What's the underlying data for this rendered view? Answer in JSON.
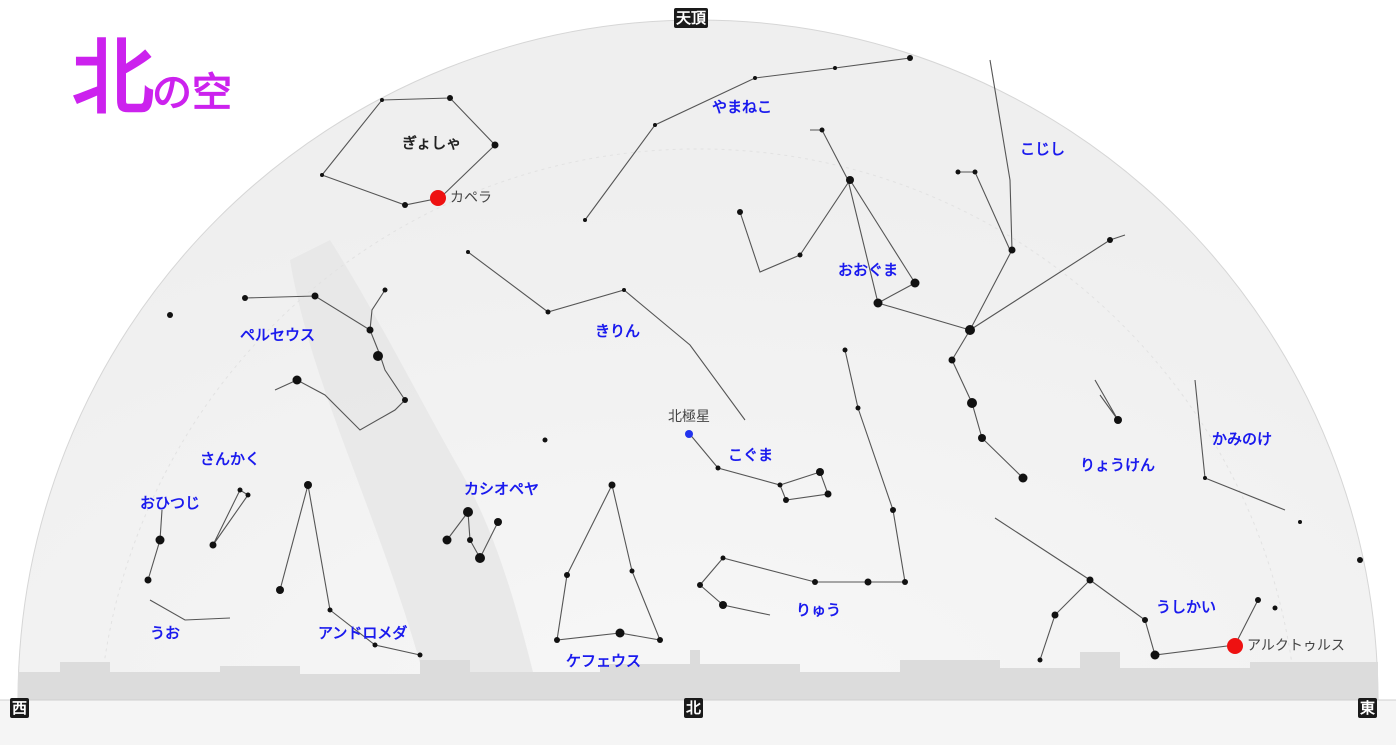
{
  "title": {
    "main": "北",
    "suffix": "の空"
  },
  "directions": {
    "zenith": "天頂",
    "west": "西",
    "north": "北",
    "east": "東"
  },
  "constellations": [
    "やまねこ",
    "こじし",
    "ぎょしゃ",
    "おおぐま",
    "ペルセウス",
    "きりん",
    "さんかく",
    "こぐま",
    "かみのけ",
    "りょうけん",
    "おひつじ",
    "カシオペヤ",
    "りゅう",
    "うしかい",
    "うお",
    "アンドロメダ",
    "ケフェウス"
  ],
  "stars": {
    "capella": "カペラ",
    "polaris": "北極星",
    "arcturus": "アルクトゥルス"
  },
  "colors": {
    "title": "#cc22ee",
    "constellation_label": "#1a1aee",
    "bright_star": "#ee1111",
    "polaris": "#2233ee"
  }
}
